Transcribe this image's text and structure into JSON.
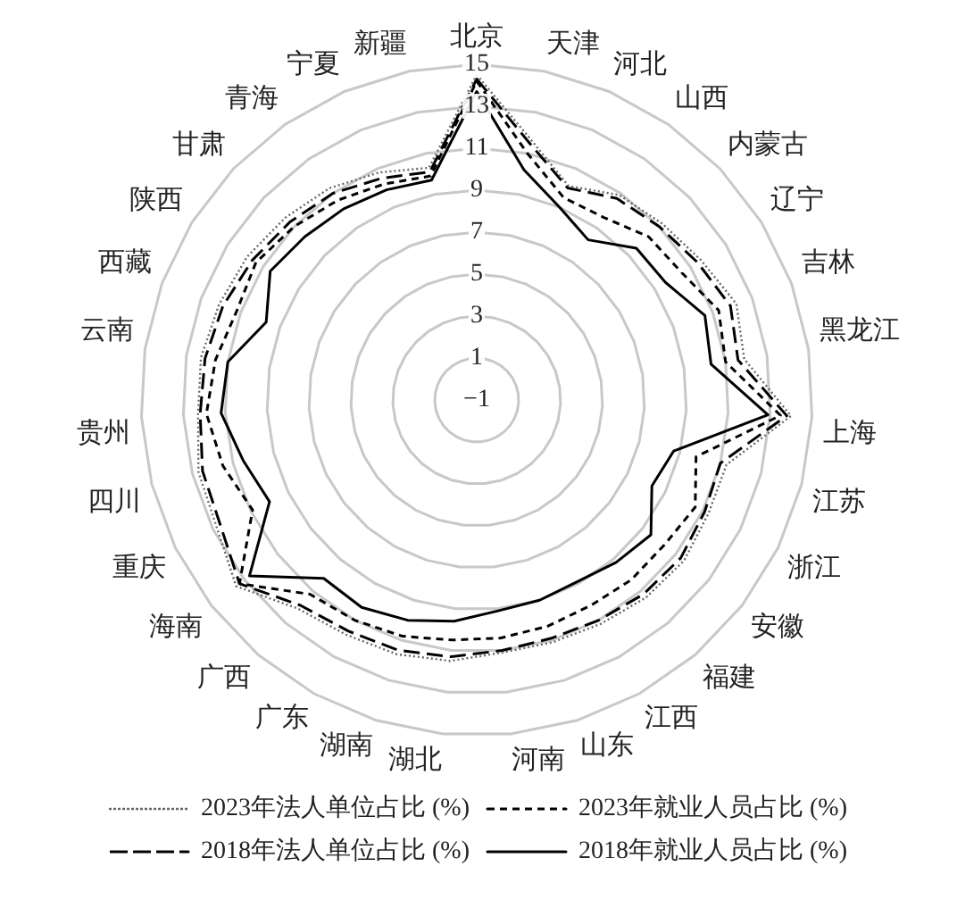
{
  "chart_data": {
    "type": "radar",
    "categories": [
      "北京",
      "天津",
      "河北",
      "山西",
      "内蒙古",
      "辽宁",
      "吉林",
      "黑龙江",
      "上海",
      "江苏",
      "浙江",
      "安徽",
      "福建",
      "江西",
      "山东",
      "河南",
      "湖北",
      "湖南",
      "广东",
      "广西",
      "海南",
      "重庆",
      "四川",
      "贵州",
      "云南",
      "西藏",
      "陕西",
      "甘肃",
      "青海",
      "宁夏",
      "新疆"
    ],
    "ylim": [
      -1,
      15
    ],
    "yticks": [
      -1,
      1,
      3,
      5,
      7,
      9,
      11,
      13,
      15
    ],
    "grid": true,
    "legend": "bottom",
    "marker": "none",
    "series": [
      {
        "name": "2023年法人单位占比 (%)",
        "color": "#666666",
        "line_style": "dotted",
        "values": [
          14.5,
          11.7,
          10.1,
          10.9,
          11.2,
          11.6,
          12.2,
          11.9,
          14.0,
          11.3,
          11.3,
          11.5,
          11.4,
          11.2,
          11.1,
          11.1,
          11.5,
          11.7,
          11.8,
          12.1,
          13.5,
          12.8,
          12.7,
          12.3,
          12.3,
          12.1,
          11.9,
          11.6,
          11.3,
          10.8,
          10.3
        ]
      },
      {
        "name": "2023年就业人员占比 (%)",
        "color": "#000000",
        "line_style": "dashed",
        "values": [
          14.2,
          11.0,
          9.5,
          9.6,
          10.3,
          10.5,
          11.3,
          11.0,
          13.5,
          9.8,
          10.6,
          10.3,
          10.3,
          10.2,
          10.3,
          10.4,
          10.5,
          10.8,
          11.0,
          11.2,
          13.3,
          10.9,
          11.5,
          11.9,
          11.6,
          11.2,
          11.4,
          11.0,
          10.6,
          10.2,
          9.9
        ]
      },
      {
        "name": "2018年法人单位占比 (%)",
        "color": "#000000",
        "line_style": "dashed",
        "values": [
          14.3,
          11.5,
          10.0,
          10.7,
          11.0,
          11.4,
          11.9,
          11.6,
          13.8,
          11.0,
          11.1,
          11.3,
          11.2,
          11.0,
          10.9,
          11.0,
          11.3,
          11.5,
          11.6,
          11.9,
          13.3,
          12.6,
          12.5,
          12.2,
          12.1,
          11.9,
          11.6,
          11.3,
          11.0,
          10.5,
          10.1
        ]
      },
      {
        "name": "2018年就业人员占比 (%)",
        "color": "#000000",
        "line_style": "solid",
        "values": [
          13.7,
          10.2,
          9.0,
          8.3,
          9.5,
          9.6,
          10.6,
          10.3,
          12.9,
          8.7,
          8.3,
          9.5,
          9.2,
          8.9,
          9.0,
          9.1,
          9.6,
          10.0,
          10.3,
          10.2,
          12.7,
          10.0,
          10.5,
          11.2,
          11.0,
          9.7,
          10.6,
          10.3,
          10.1,
          9.9,
          9.7
        ]
      }
    ]
  }
}
